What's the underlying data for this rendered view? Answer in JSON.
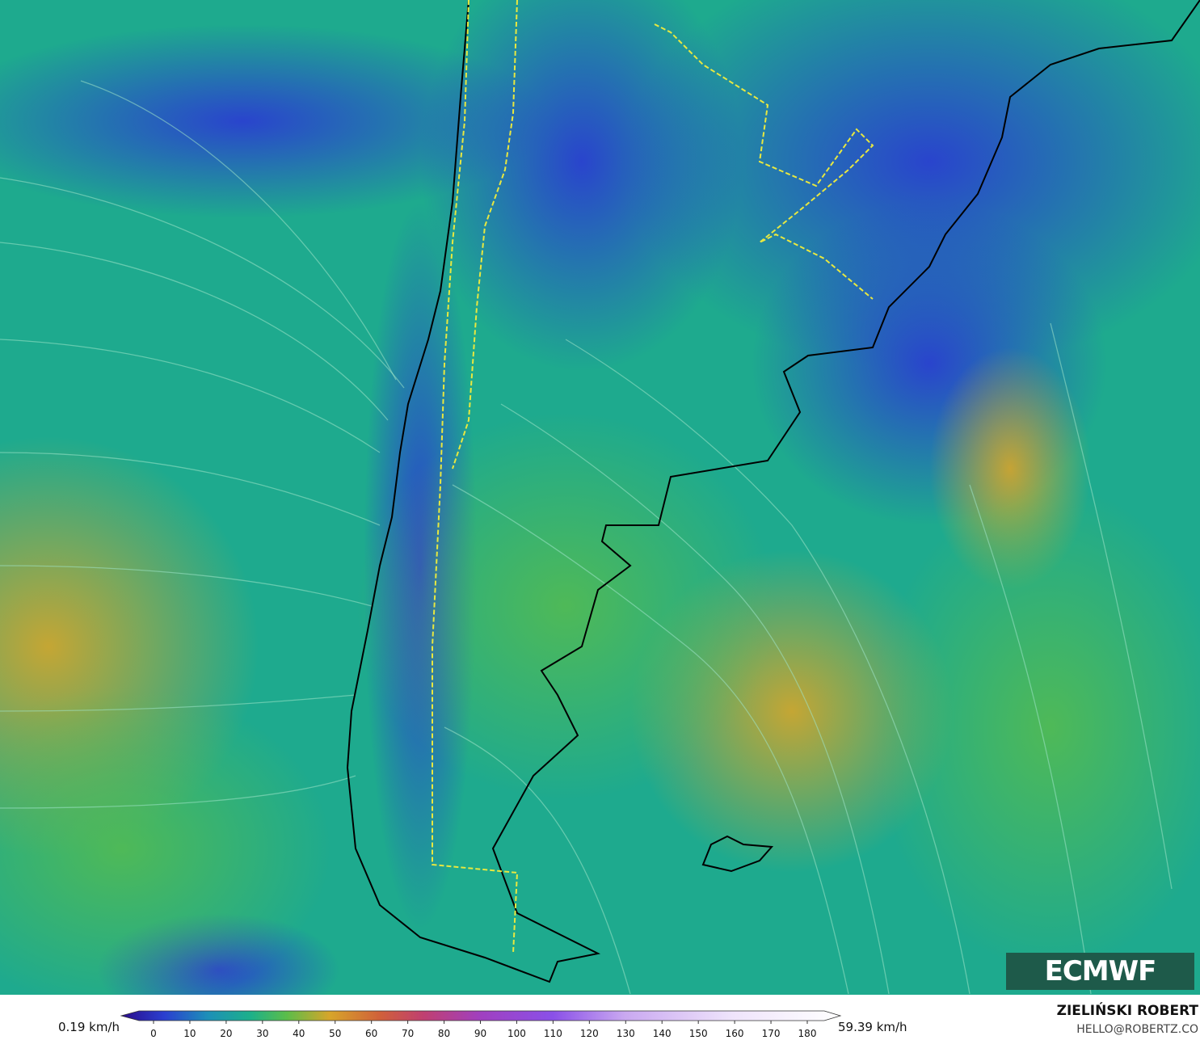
{
  "colorbar": {
    "min_label": "0.19 km/h",
    "max_label": "59.39 km/h",
    "ticks": [
      0,
      10,
      20,
      30,
      40,
      50,
      60,
      70,
      80,
      90,
      100,
      110,
      120,
      130,
      140,
      150,
      160,
      170,
      180
    ]
  },
  "logo": "ECMWF",
  "author": "ZIELIŃSKI ROBERT",
  "contact": "HELLO@ROBERTZ.CO"
}
